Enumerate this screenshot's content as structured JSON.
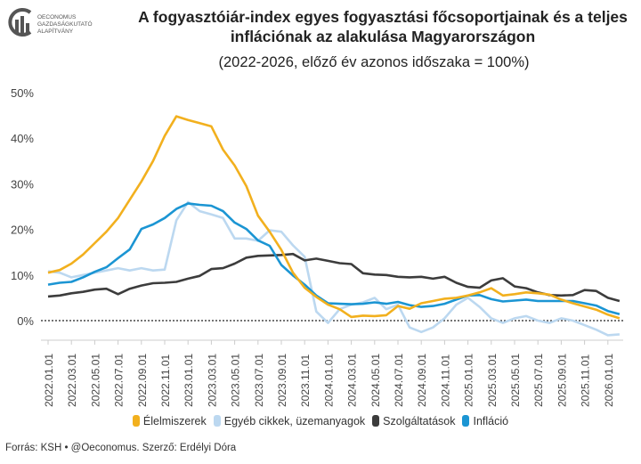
{
  "logo_text": [
    "OECONOMUS",
    "GAZDASÁGKUTATÓ",
    "ALAPÍTVÁNY"
  ],
  "source": "Forrás: KSH • @Oeconomus. Szerző: Erdélyi Dóra",
  "chart_data": {
    "type": "line",
    "title": "A fogyasztóiár-index egyes fogyasztási főcsoportjainak és a teljes inflációnak az alakulása Magyarországon",
    "subtitle": "(2022-2026, előző év azonos időszaka = 100%)",
    "ylim": [
      -5,
      50
    ],
    "yticks": [
      "0%",
      "10%",
      "20%",
      "30%",
      "40%",
      "50%"
    ],
    "ytick_values": [
      0,
      10,
      20,
      30,
      40,
      50
    ],
    "xtick_labels": [
      "2022.01.01",
      "2022.03.01",
      "2022.05.01",
      "2022.07.01",
      "2022.09.01",
      "2022.11.01",
      "2023.01.01",
      "2023.03.01",
      "2023.05.01",
      "2023.07.01",
      "2023.09.01",
      "2023.11.01",
      "2024.01.01",
      "2024.03.01",
      "2024.05.01",
      "2024.07.01",
      "2024.09.01",
      "2024.11.01",
      "2025.01.01",
      "2025.03.01",
      "2025.05.01",
      "2025.07.01",
      "2025.09.01",
      "2025.11.01",
      "2026.01.01"
    ],
    "x_start": "2022.01",
    "x_end": "2026.02",
    "frequency": "monthly",
    "legend_position": "bottom",
    "series": [
      {
        "name": "Élelmiszerek",
        "color": "#f2b01e",
        "values": [
          10.5,
          11.1,
          12.5,
          14.5,
          17,
          19.5,
          22.5,
          26.5,
          30.5,
          35,
          40.5,
          44.8,
          44,
          43.3,
          42.6,
          37.5,
          34,
          29.5,
          23,
          19.5,
          15.5,
          10.5,
          7.2,
          5.2,
          3.5,
          2.5,
          0.8,
          1.1,
          1,
          1.2,
          3.2,
          2.6,
          3.8,
          4.3,
          4.8,
          5,
          5.5,
          6.2,
          7.1,
          5.5,
          5.8,
          6.2,
          6,
          5.7,
          4.6,
          3.8,
          3.1,
          2.4,
          1.3,
          0.5
        ]
      },
      {
        "name": "Egyéb cikkek, üzemanyagok",
        "color": "#bcd8f0",
        "values": [
          10.8,
          10.5,
          9.5,
          10,
          10.5,
          11,
          11.5,
          11,
          11.5,
          11,
          11.2,
          22,
          26,
          24,
          23.3,
          22.5,
          18,
          18,
          17.5,
          19.8,
          19.5,
          16.5,
          14,
          2,
          -0.5,
          2.5,
          3.5,
          4,
          5,
          2.5,
          3.5,
          -1.5,
          -2.5,
          -1.5,
          0.5,
          3.5,
          5,
          3,
          0.5,
          -0.5,
          0.5,
          1,
          0,
          -0.5,
          0.5,
          0,
          -1,
          -2,
          -3.2,
          -3
        ]
      },
      {
        "name": "Szolgáltatások",
        "color": "#3c3c3c",
        "values": [
          5.3,
          5.5,
          6,
          6.3,
          6.8,
          7,
          5.8,
          7,
          7.7,
          8.2,
          8.3,
          8.5,
          9.2,
          9.8,
          11.3,
          11.5,
          12.5,
          13.8,
          14.2,
          14.3,
          14.4,
          14.6,
          13.2,
          13.6,
          13.1,
          12.6,
          12.4,
          10.4,
          10.1,
          10,
          9.6,
          9.5,
          9.6,
          9.2,
          9.6,
          8.3,
          7.4,
          7.2,
          8.8,
          9.3,
          7.5,
          7.1,
          6.2,
          5.6,
          5.5,
          5.6,
          6.7,
          6.5,
          5,
          4.3
        ]
      },
      {
        "name": "Infláció",
        "color": "#1b95d3",
        "values": [
          7.9,
          8.3,
          8.5,
          9.5,
          10.7,
          11.7,
          13.7,
          15.6,
          20.1,
          21.1,
          22.5,
          24.5,
          25.7,
          25.4,
          25.2,
          24,
          21.5,
          20.1,
          17.6,
          16.4,
          12.2,
          9.9,
          7.9,
          5.5,
          3.8,
          3.7,
          3.6,
          3.7,
          4,
          3.7,
          4.1,
          3.4,
          3,
          3.2,
          3.7,
          4.6,
          5.5,
          5.6,
          4.7,
          4.2,
          4.4,
          4.6,
          4.3,
          4.3,
          4.3,
          4.3,
          3.8,
          3.3,
          2.1,
          1.4
        ]
      }
    ]
  }
}
